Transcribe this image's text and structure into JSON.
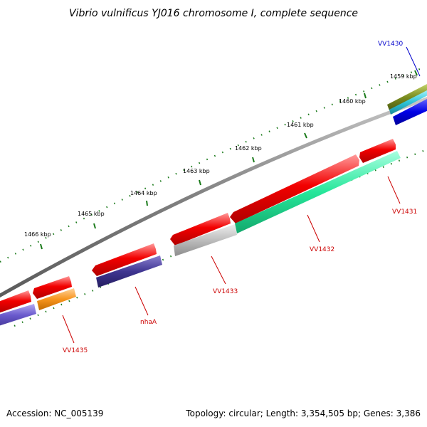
{
  "title": "Vibrio vulnificus YJ016 chromosome I, complete sequence",
  "ticks": [
    "1459 kbp",
    "1460 kbp",
    "1461 kbp",
    "1462 kbp",
    "1463 kbp",
    "1464 kbp",
    "1465 kbp",
    "1466 kbp"
  ],
  "genes": [
    "VV1430",
    "VV1431",
    "VV1432",
    "VV1433",
    "nhaA",
    "VV1435"
  ],
  "footer": {
    "accession": "Accession: NC_005139",
    "summary": "Topology: circular; Length: 3,354,505 bp; Genes: 3,386"
  },
  "colors": {
    "red": "#f20000",
    "green_feature": "#26e69a",
    "gray_feature": "#bdbdbd",
    "navy_feature": "#3f3591",
    "purple_feature": "#6a5acd",
    "orange_feature": "#f7941d",
    "olive_feature": "#7a8c1f",
    "cyan_feature": "#2fc4d8",
    "blue_feature": "#0000e6",
    "backbone": "#808080",
    "tick_green": "#1a7a1a",
    "label_red": "#cc0000",
    "label_blue": "#0000cc"
  }
}
